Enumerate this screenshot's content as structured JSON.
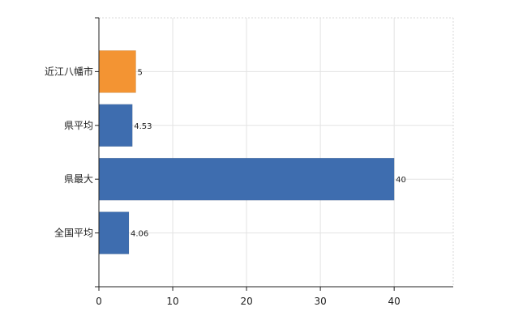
{
  "chart_data": {
    "type": "bar",
    "orientation": "horizontal",
    "categories": [
      "近江八幡市",
      "県平均",
      "県最大",
      "全国平均"
    ],
    "values": [
      5,
      4.53,
      40,
      4.06
    ],
    "value_labels": [
      "5",
      "4.53",
      "40",
      "4.06"
    ],
    "colors": [
      "#f39433",
      "#3e6daf",
      "#3e6daf",
      "#3e6daf"
    ],
    "xlim": [
      0,
      48
    ],
    "xticks": [
      0,
      10,
      20,
      30,
      40
    ],
    "title": "",
    "xlabel": "",
    "ylabel": "",
    "grid": true,
    "legend": "none"
  }
}
